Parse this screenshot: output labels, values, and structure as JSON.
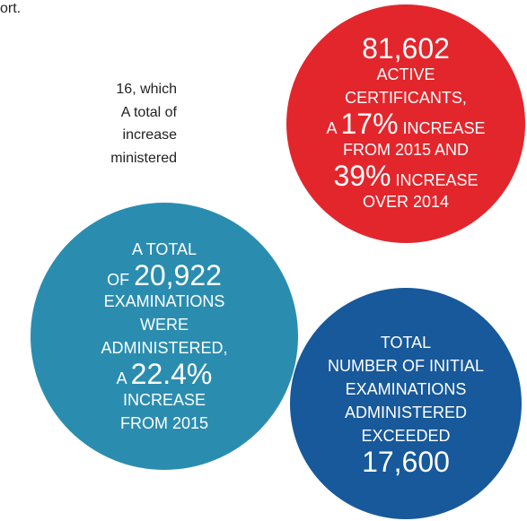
{
  "body_text": [
    "ort.",
    "16, which",
    "A total of",
    "increase",
    "ministered"
  ],
  "circles": [
    {
      "color": "#e3262c",
      "lines": [
        {
          "num": "81,602"
        },
        {
          "pre": "ACTIVE"
        },
        {
          "pre": "CERTIFICANTS,"
        },
        {
          "pre": "A ",
          "num": "17%",
          "post": " INCREASE"
        },
        {
          "pre": "FROM 2015 AND"
        },
        {
          "num": "39%",
          "post": " INCREASE"
        },
        {
          "pre": "OVER 2014"
        }
      ]
    },
    {
      "color": "#2a8db0",
      "lines": [
        {
          "pre": "A TOTAL"
        },
        {
          "pre": "OF ",
          "num": "20,922"
        },
        {
          "pre": "EXAMINATIONS"
        },
        {
          "pre": "WERE"
        },
        {
          "pre": "ADMINISTERED,"
        },
        {
          "pre": "A ",
          "num": "22.4%"
        },
        {
          "pre": "INCREASE"
        },
        {
          "pre": "FROM 2015"
        }
      ]
    },
    {
      "color": "#17599a",
      "lines": [
        {
          "pre": "TOTAL"
        },
        {
          "pre": "NUMBER OF INITIAL"
        },
        {
          "pre": "EXAMINATIONS"
        },
        {
          "pre": "ADMINISTERED"
        },
        {
          "pre": "EXCEEDED"
        },
        {
          "num": "17,600"
        }
      ]
    }
  ]
}
